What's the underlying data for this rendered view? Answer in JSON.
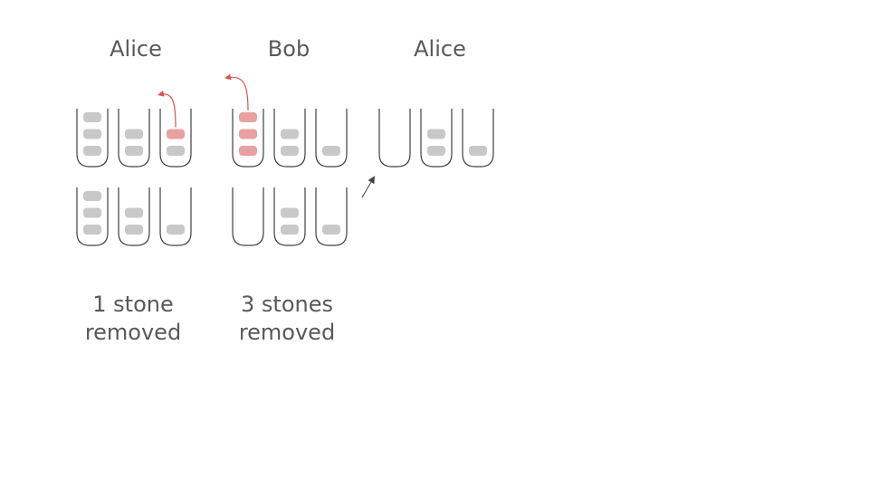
{
  "columns": [
    {
      "player": "Alice",
      "caption": [
        "1 stone",
        "removed"
      ],
      "heaps_top": [
        3,
        2,
        2
      ],
      "heaps_bottom": [
        3,
        2,
        1
      ],
      "removed_from_heap": 3,
      "removed_count": 1
    },
    {
      "player": "Bob",
      "caption": [
        "3 stones",
        "removed"
      ],
      "heaps_top": [
        3,
        2,
        1
      ],
      "heaps_bottom": [
        0,
        2,
        1
      ],
      "removed_from_heap": 1,
      "removed_count": 3
    },
    {
      "player": "Alice",
      "caption": [],
      "heaps_top": [
        0,
        2,
        1
      ],
      "heaps_bottom": [],
      "removed_from_heap": null,
      "removed_count": 0
    }
  ],
  "colors": {
    "stone": "#c8c8c8",
    "stone_removed": "#e8a0a0",
    "cup_outline": "#404040",
    "move_arrow": "#d9534f",
    "transition_arrow": "#404040"
  }
}
